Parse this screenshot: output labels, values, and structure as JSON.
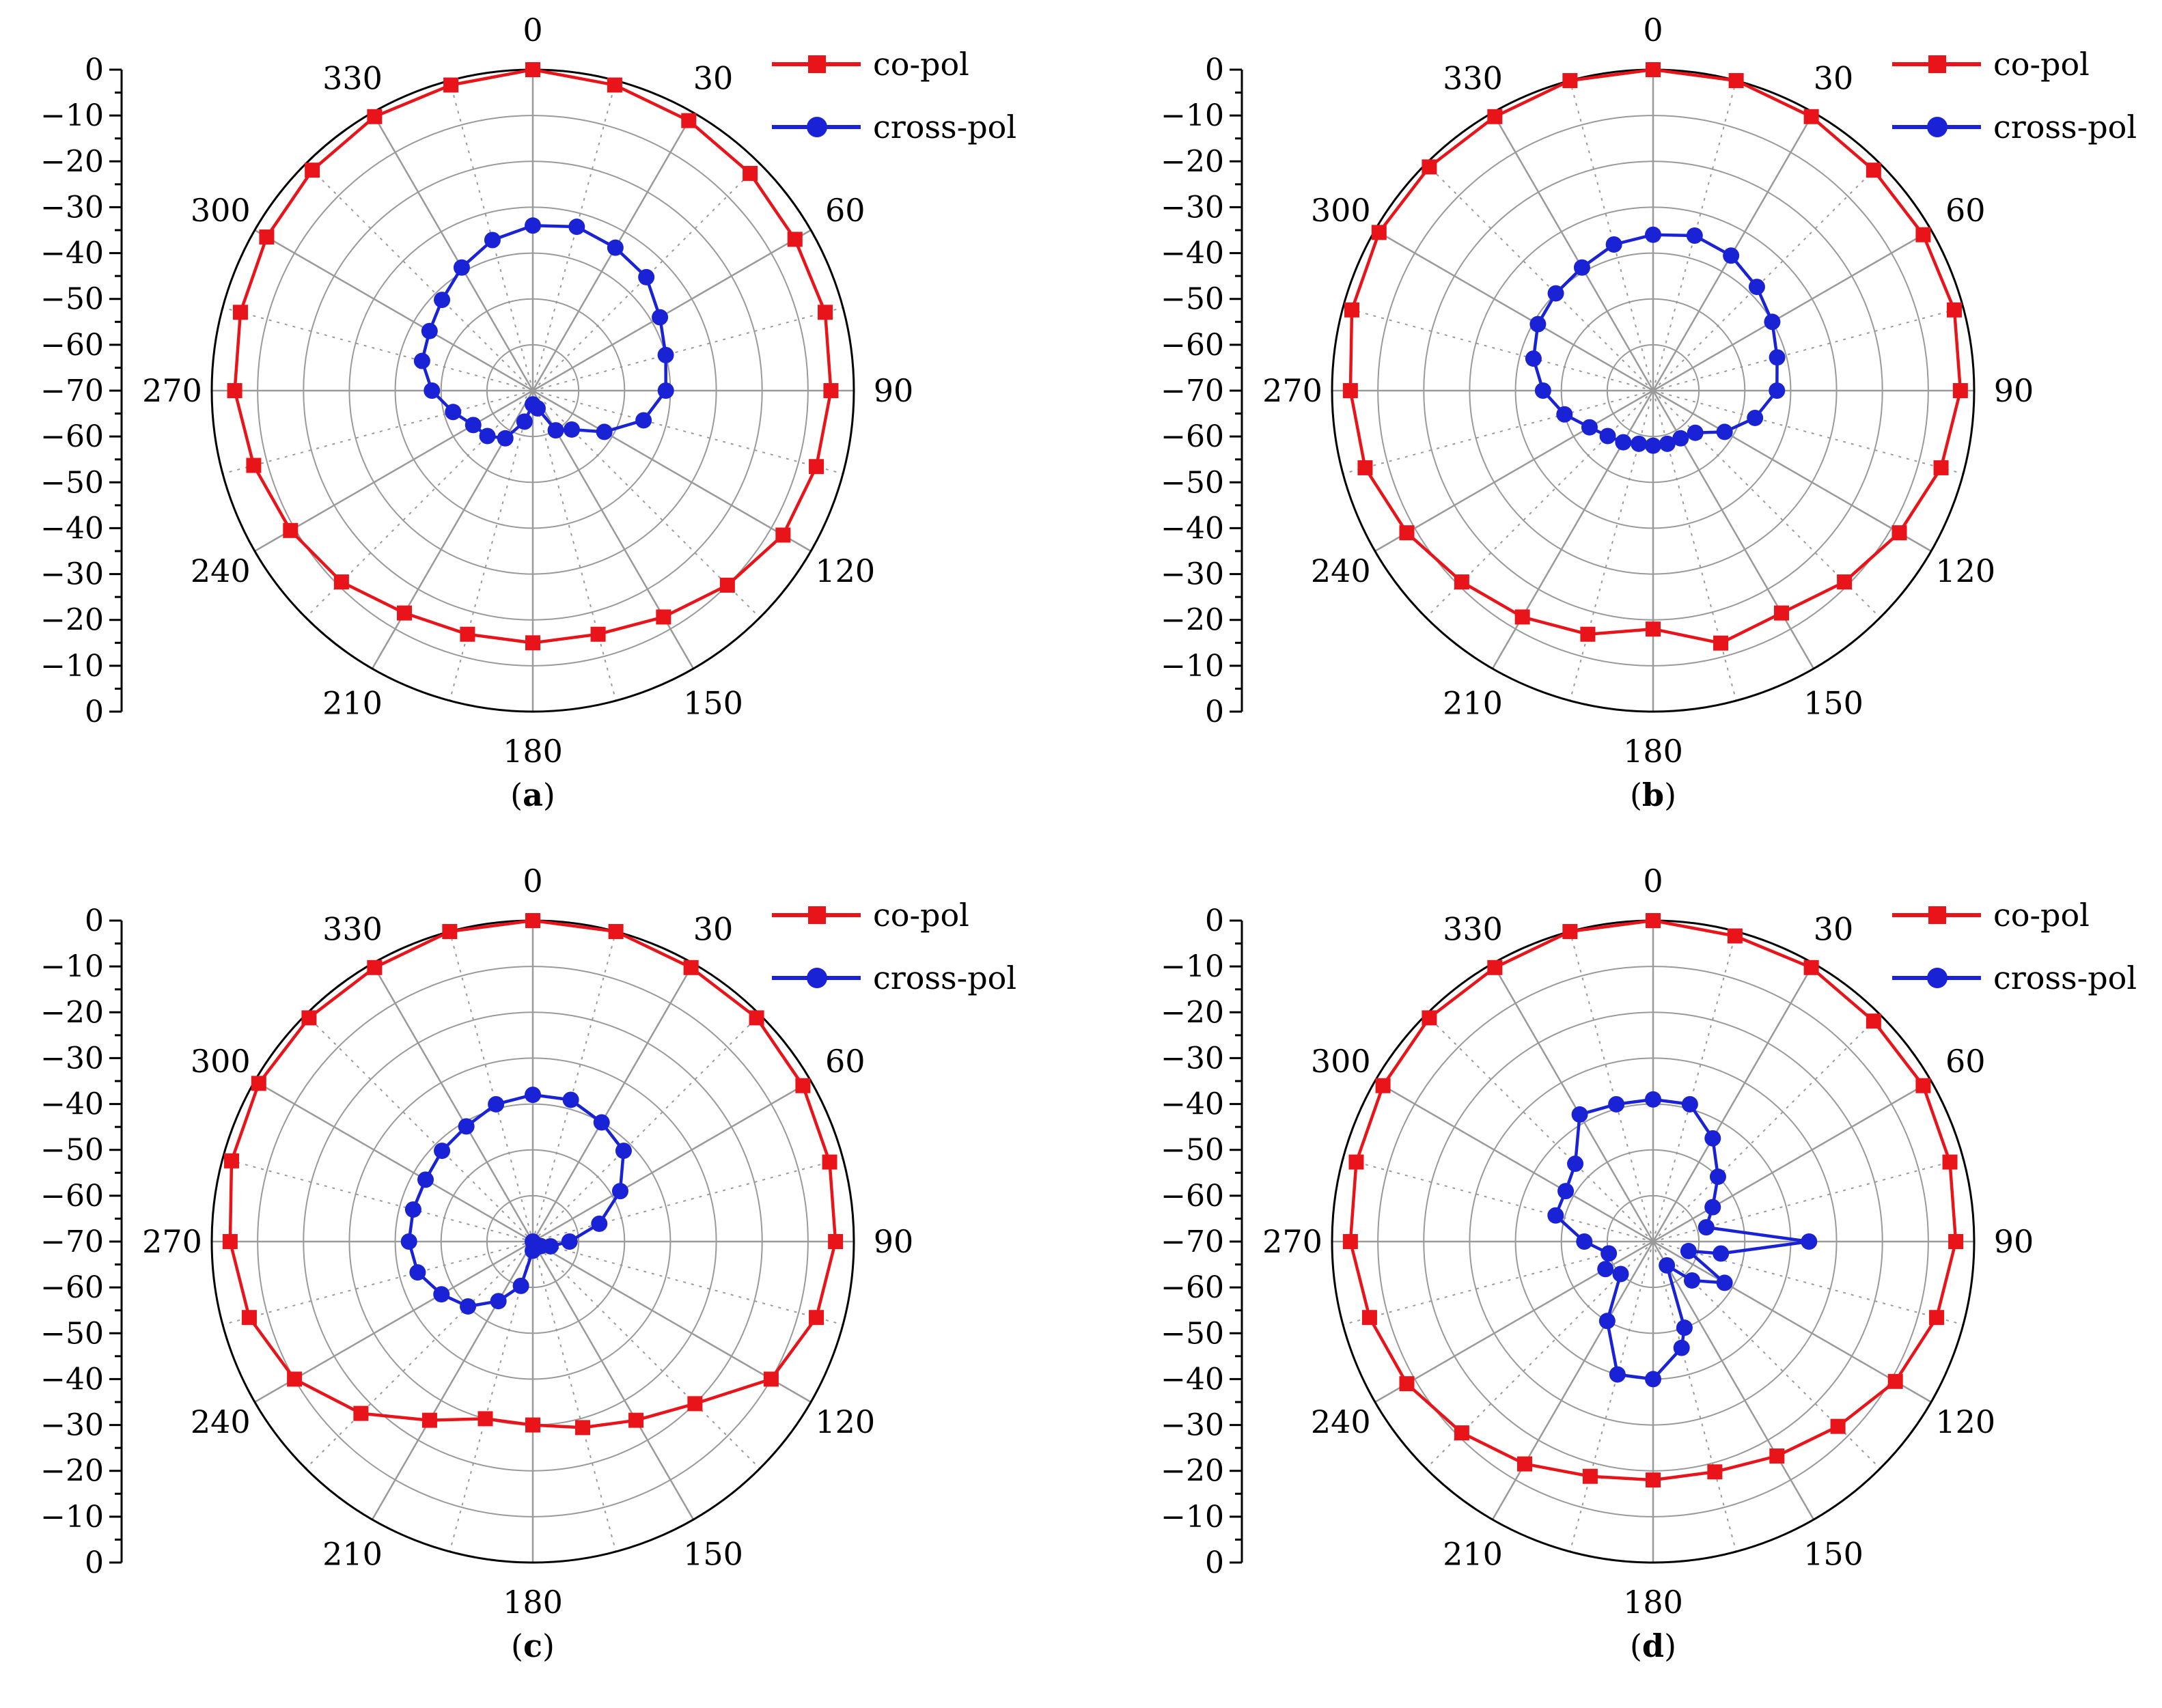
{
  "colors": {
    "co_pol": "#e8141a",
    "cross_pol": "#1a22d6",
    "grid": "#9a9a9a",
    "axis": "#000000"
  },
  "chart_data": [
    {
      "type": "line",
      "subtype": "polar",
      "caption_letter": "a",
      "radial_ticks": [
        "0",
        "−10",
        "−20",
        "−30",
        "−40",
        "−50",
        "−60",
        "−70"
      ],
      "radial_range": [
        -70,
        0
      ],
      "angle_ticks": [
        "0",
        "30",
        "60",
        "90",
        "120",
        "150",
        "180",
        "210",
        "240",
        "270",
        "300",
        "330"
      ],
      "legend": {
        "position": "top-right",
        "entries": [
          "co-pol",
          "cross-pol"
        ]
      },
      "series": [
        {
          "name": "co-pol",
          "marker": "square",
          "angles": [
            0,
            15,
            30,
            45,
            60,
            75,
            90,
            105,
            120,
            135,
            150,
            165,
            180,
            195,
            210,
            225,
            240,
            255,
            270,
            285,
            300,
            315,
            330,
            345
          ],
          "values": [
            0,
            -1,
            -2,
            -3,
            -4,
            -4,
            -5,
            -6,
            -7,
            -10,
            -13,
            -15,
            -15,
            -15,
            -14,
            -11,
            -9,
            -7,
            -5,
            -4,
            -3,
            -2,
            -1,
            -1
          ]
        },
        {
          "name": "cross-pol",
          "marker": "circle",
          "angles": [
            0,
            15,
            30,
            45,
            60,
            75,
            90,
            105,
            120,
            135,
            150,
            165,
            180,
            195,
            210,
            225,
            240,
            255,
            270,
            285,
            300,
            315,
            330,
            345
          ],
          "values": [
            -34,
            -33,
            -34,
            -35,
            -38,
            -40,
            -41,
            -45,
            -52,
            -58,
            -60,
            -66,
            -67,
            -63,
            -58,
            -56,
            -55,
            -52,
            -48,
            -45,
            -44,
            -42,
            -39,
            -36
          ]
        }
      ]
    },
    {
      "type": "line",
      "subtype": "polar",
      "caption_letter": "b",
      "radial_ticks": [
        "0",
        "−10",
        "−20",
        "−30",
        "−40",
        "−50",
        "−60",
        "−70"
      ],
      "radial_range": [
        -70,
        0
      ],
      "angle_ticks": [
        "0",
        "30",
        "60",
        "90",
        "120",
        "150",
        "180",
        "210",
        "240",
        "270",
        "300",
        "330"
      ],
      "legend": {
        "position": "top-right",
        "entries": [
          "co-pol",
          "cross-pol"
        ]
      },
      "series": [
        {
          "name": "co-pol",
          "marker": "square",
          "angles": [
            0,
            15,
            30,
            45,
            60,
            75,
            90,
            105,
            120,
            135,
            150,
            165,
            180,
            195,
            210,
            225,
            240,
            255,
            270,
            285,
            300,
            315,
            330,
            345
          ],
          "values": [
            0,
            0,
            -1,
            -2,
            -2,
            -2,
            -3,
            -5,
            -8,
            -11,
            -14,
            -13,
            -18,
            -15,
            -13,
            -11,
            -8,
            -5,
            -4,
            -2,
            -1,
            -1,
            -1,
            0
          ]
        },
        {
          "name": "cross-pol",
          "marker": "circle",
          "angles": [
            0,
            15,
            30,
            45,
            60,
            75,
            90,
            105,
            120,
            135,
            150,
            165,
            180,
            195,
            210,
            225,
            240,
            255,
            270,
            285,
            300,
            315,
            330,
            345
          ],
          "values": [
            -36,
            -35,
            -36,
            -38,
            -40,
            -42,
            -43,
            -47,
            -52,
            -57,
            -58,
            -58,
            -58,
            -58,
            -57,
            -56,
            -54,
            -50,
            -46,
            -43,
            -41,
            -40,
            -39,
            -37
          ]
        }
      ]
    },
    {
      "type": "line",
      "subtype": "polar",
      "caption_letter": "c",
      "radial_ticks": [
        "0",
        "−10",
        "−20",
        "−30",
        "−40",
        "−50",
        "−60",
        "−70"
      ],
      "radial_range": [
        -70,
        0
      ],
      "angle_ticks": [
        "0",
        "30",
        "60",
        "90",
        "120",
        "150",
        "180",
        "210",
        "240",
        "270",
        "300",
        "330"
      ],
      "legend": {
        "position": "top-right",
        "entries": [
          "co-pol",
          "cross-pol"
        ]
      },
      "series": [
        {
          "name": "co-pol",
          "marker": "square",
          "angles": [
            0,
            15,
            30,
            45,
            60,
            75,
            90,
            105,
            120,
            135,
            150,
            165,
            180,
            195,
            210,
            225,
            240,
            255,
            270,
            285,
            300,
            315,
            330,
            345
          ],
          "values": [
            0,
            0,
            -1,
            -1,
            -2,
            -3,
            -4,
            -6,
            -10,
            -20,
            -25,
            -28,
            -30,
            -30,
            -25,
            -17,
            -10,
            -6,
            -4,
            -2,
            -1,
            -1,
            -1,
            0
          ]
        },
        {
          "name": "cross-pol",
          "marker": "circle",
          "angles": [
            0,
            15,
            30,
            45,
            60,
            75,
            90,
            105,
            120,
            135,
            150,
            165,
            180,
            195,
            210,
            225,
            240,
            255,
            270,
            285,
            300,
            315,
            330,
            345
          ],
          "values": [
            -38,
            -38,
            -40,
            -42,
            -48,
            -55,
            -62,
            -66,
            -68,
            -69,
            -70,
            -69,
            -68,
            -60,
            -55,
            -50,
            -47,
            -44,
            -43,
            -43,
            -43,
            -42,
            -41,
            -39
          ]
        }
      ]
    },
    {
      "type": "line",
      "subtype": "polar",
      "caption_letter": "d",
      "radial_ticks": [
        "0",
        "−10",
        "−20",
        "−30",
        "−40",
        "−50",
        "−60",
        "−70"
      ],
      "radial_range": [
        -70,
        0
      ],
      "angle_ticks": [
        "0",
        "30",
        "60",
        "90",
        "120",
        "150",
        "180",
        "210",
        "240",
        "270",
        "300",
        "330"
      ],
      "legend": {
        "position": "top-right",
        "entries": [
          "co-pol",
          "cross-pol"
        ]
      },
      "series": [
        {
          "name": "co-pol",
          "marker": "square",
          "angles": [
            0,
            15,
            30,
            45,
            60,
            75,
            90,
            105,
            120,
            135,
            150,
            165,
            180,
            195,
            210,
            225,
            240,
            255,
            270,
            285,
            300,
            315,
            330,
            345
          ],
          "values": [
            0,
            -1,
            -1,
            -2,
            -2,
            -3,
            -4,
            -6,
            -9,
            -13,
            -16,
            -18,
            -18,
            -17,
            -14,
            -11,
            -8,
            -6,
            -4,
            -3,
            -2,
            -1,
            -1,
            0
          ]
        },
        {
          "name": "cross-pol",
          "marker": "circle",
          "angles": [
            0,
            15,
            30,
            45,
            60,
            75,
            90,
            100,
            105,
            120,
            135,
            150,
            160,
            165,
            180,
            195,
            210,
            225,
            240,
            255,
            270,
            285,
            300,
            315,
            330,
            345
          ],
          "values": [
            -39,
            -39,
            -44,
            -50,
            -55,
            -58,
            -36,
            -55,
            -62,
            -52,
            -58,
            -64,
            -50,
            -46,
            -40,
            -40,
            -50,
            -60,
            -58,
            -60,
            -55,
            -48,
            -48,
            -46,
            -38,
            -39
          ]
        }
      ]
    }
  ]
}
